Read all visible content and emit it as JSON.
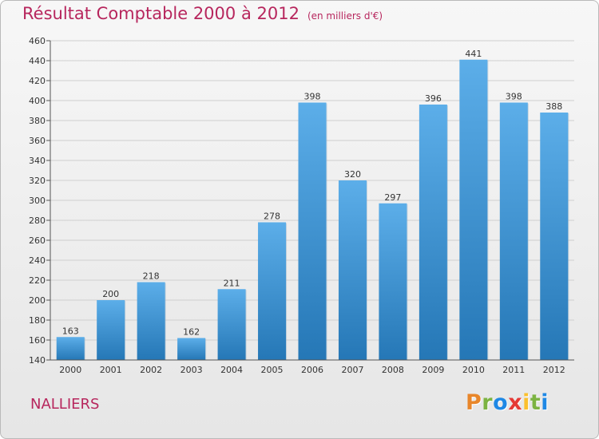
{
  "title": "Résultat Comptable 2000 à 2012",
  "subtitle": "(en milliers d'€)",
  "location": "NALLIERS",
  "brand": "Proxiti",
  "brand_colors": [
    "#e8862a",
    "#7cb342",
    "#1e88e5",
    "#e53935",
    "#fbc02d",
    "#7cb342",
    "#1e88e5"
  ],
  "colors": {
    "title": "#b7265d",
    "bar_top": "#5caee9",
    "bar_bottom": "#2577b6"
  },
  "chart_data": {
    "type": "bar",
    "title": "Résultat Comptable 2000 à 2012",
    "xlabel": "",
    "ylabel": "",
    "categories": [
      "2000",
      "2001",
      "2002",
      "2003",
      "2004",
      "2005",
      "2006",
      "2007",
      "2008",
      "2009",
      "2010",
      "2011",
      "2012"
    ],
    "values": [
      163,
      200,
      218,
      162,
      211,
      278,
      398,
      320,
      297,
      396,
      441,
      398,
      388
    ],
    "ylim": [
      140,
      460
    ],
    "yticks": [
      140,
      160,
      180,
      200,
      220,
      240,
      260,
      280,
      300,
      320,
      340,
      360,
      380,
      400,
      420,
      440,
      460
    ],
    "grid": true
  }
}
